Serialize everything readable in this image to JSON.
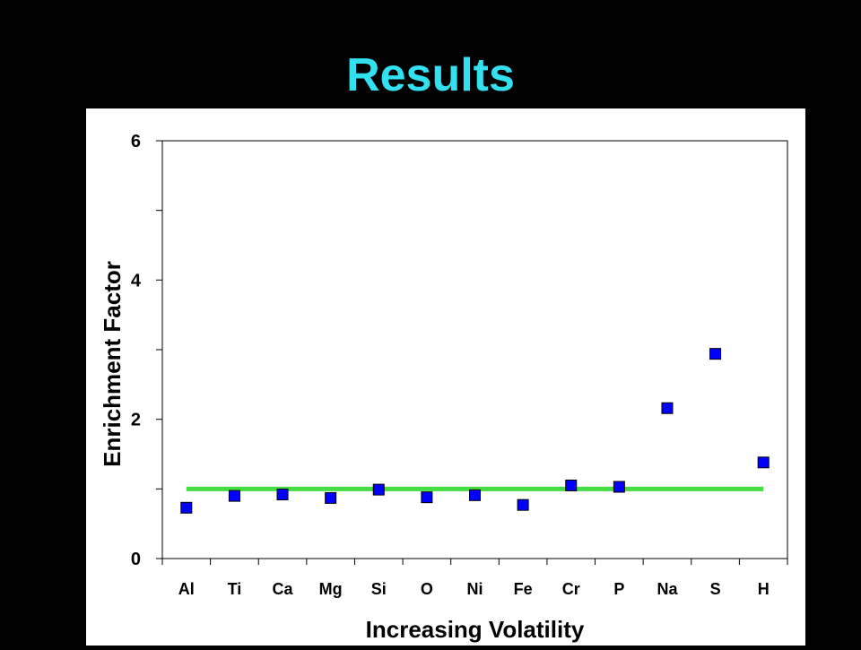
{
  "slide": {
    "title": "Results"
  },
  "chart_data": {
    "type": "scatter",
    "categories": [
      "Al",
      "Ti",
      "Ca",
      "Mg",
      "Si",
      "O",
      "Ni",
      "Fe",
      "Cr",
      "P",
      "Na",
      "S",
      "H"
    ],
    "series": [
      {
        "values": [
          0.73,
          0.9,
          0.92,
          0.87,
          0.99,
          0.88,
          0.91,
          0.77,
          1.05,
          1.03,
          2.16,
          2.94,
          1.38
        ],
        "color": "#0000ff",
        "marker": "square"
      }
    ],
    "reference_line": {
      "y": 1.0,
      "from": "Al",
      "to": "H",
      "color": "#44dd44"
    },
    "xlabel": "Increasing Volatility",
    "ylabel": "Enrichment Factor",
    "ylim": [
      0,
      6
    ],
    "yticks": [
      0,
      2,
      4,
      6
    ],
    "grid": false,
    "legend": "none"
  }
}
